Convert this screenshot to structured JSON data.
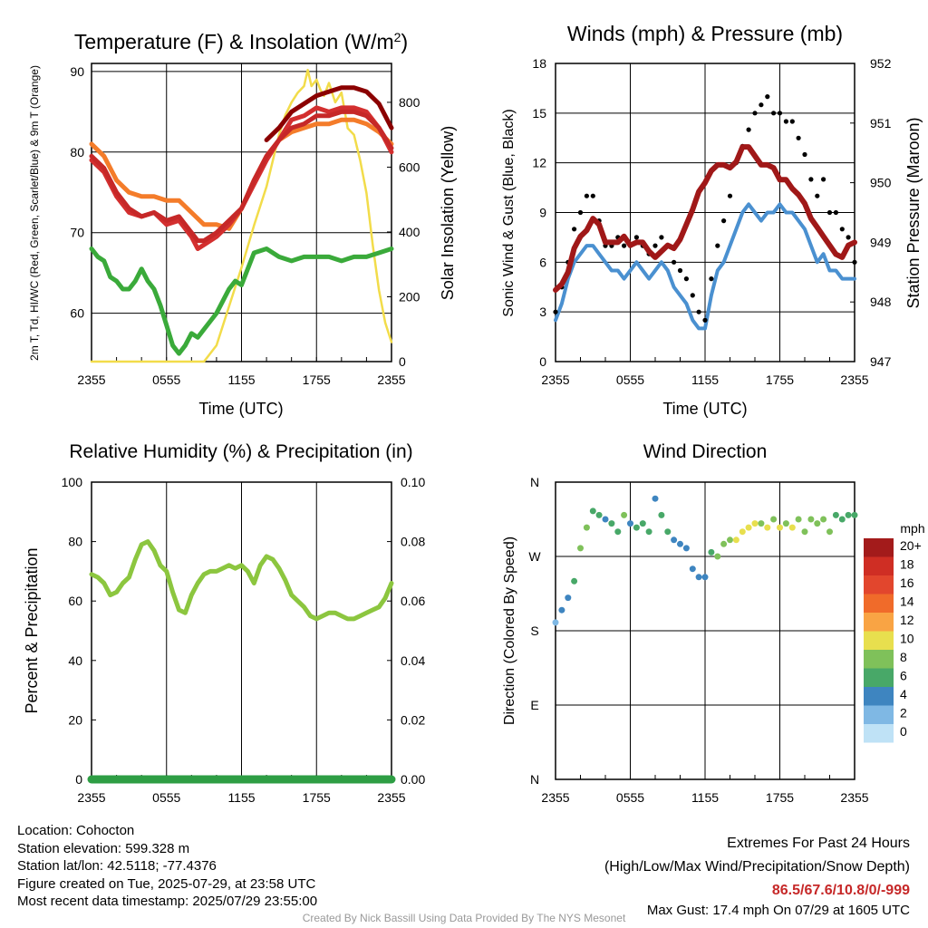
{
  "colors": {
    "temp": "#c62828",
    "dewpoint": "#8b0000",
    "heat_index": "#d32f2f",
    "temp9m": "#f47c2a",
    "dew_green": "#3aaa3a",
    "insolation": "#f2dc4a",
    "wind": "#4a90d0",
    "gust": "#000000",
    "pressure": "#a01818",
    "rh": "#8cc63f",
    "precip": "#2e9e44"
  },
  "speed_scale": {
    "label": "mph",
    "ticks": [
      "20+",
      "18",
      "16",
      "14",
      "12",
      "10",
      "8",
      "6",
      "4",
      "2",
      "0"
    ],
    "colors": [
      "#a31b1b",
      "#cf2e24",
      "#e2462d",
      "#f06b2a",
      "#f9a444",
      "#e8df4e",
      "#7fc15a",
      "#48a868",
      "#3e85c0",
      "#7fb8e4",
      "#bfe2f6"
    ]
  },
  "panels": {
    "temp": {
      "title": "Temperature (F) & Insolation (W/m",
      "title_sup": "2",
      "title_end": ")"
    },
    "wind": {
      "title": "Winds (mph) & Pressure (mb)"
    },
    "rh": {
      "title": "Relative Humidity (%) & Precipitation (in)"
    },
    "dir": {
      "title": "Wind Direction"
    }
  },
  "chart_data": [
    {
      "type": "line",
      "title": "Temperature (F) & Insolation (W/m2)",
      "xlabel": "Time (UTC)",
      "ylabel": "2m T, Td, HI/WC (Red, Green, Scarlet/Blue) & 9m T (Orange)",
      "y2label": "Solar Insolation (Yellow)",
      "x_ticks": [
        "2355",
        "0555",
        "1155",
        "1755",
        "2355"
      ],
      "x_hours": [
        0,
        6,
        12,
        18,
        24
      ],
      "ylim": [
        54,
        91
      ],
      "yticks": [
        60,
        70,
        80,
        90
      ],
      "y2lim": [
        0,
        920
      ],
      "y2ticks": [
        0,
        200,
        400,
        600,
        800
      ],
      "series": [
        {
          "name": "2m T",
          "hours": [
            0,
            1,
            2,
            3,
            4,
            5,
            6,
            7,
            8,
            8.5,
            9,
            10,
            11,
            12,
            13,
            14,
            15,
            16,
            17,
            18,
            19,
            20,
            21,
            22,
            23,
            24
          ],
          "values": [
            79.5,
            78,
            75,
            73,
            72,
            72.5,
            71.5,
            72,
            70,
            69,
            69,
            70,
            71.5,
            73,
            76.5,
            79.5,
            81.5,
            83,
            83.5,
            84.5,
            84.5,
            85,
            85,
            84.5,
            83,
            80.5
          ]
        },
        {
          "name": "Heat Index",
          "hours": [
            0,
            1,
            2,
            3,
            4,
            5,
            6,
            7,
            8,
            8.5,
            9,
            10,
            11,
            12,
            13,
            14,
            15,
            16,
            17,
            18,
            19,
            20,
            21,
            22,
            23,
            24
          ],
          "values": [
            79,
            77.5,
            74.5,
            72.5,
            72,
            72.5,
            71,
            71.5,
            69.5,
            68,
            68.5,
            69.5,
            71,
            73,
            76,
            79,
            81.5,
            84,
            84.5,
            85.5,
            85,
            85.5,
            85.5,
            85,
            83,
            80
          ]
        },
        {
          "name": "Dew Point (T maroon)",
          "hours": [
            14,
            15,
            16,
            17,
            18,
            19,
            20,
            21,
            22,
            23,
            24
          ],
          "values": [
            81.5,
            83,
            85,
            86,
            87,
            87.5,
            88,
            88,
            87.5,
            86,
            83
          ]
        },
        {
          "name": "9m T",
          "hours": [
            0,
            1,
            2,
            3,
            4,
            5,
            6,
            7,
            8,
            9,
            10,
            11,
            12,
            13,
            14,
            15,
            16,
            17,
            18,
            19,
            20,
            21,
            22,
            23,
            24
          ],
          "values": [
            81,
            79.5,
            76.5,
            75,
            74.5,
            74.5,
            74,
            74,
            72.5,
            71,
            71,
            70.5,
            73,
            76.5,
            79.5,
            81.5,
            82.5,
            83,
            83.5,
            83.5,
            84,
            84,
            83.5,
            82.5,
            81
          ]
        },
        {
          "name": "Td",
          "hours": [
            0,
            0.5,
            1,
            1.5,
            2,
            2.5,
            3,
            3.5,
            4,
            4.5,
            5,
            5.5,
            6,
            6.5,
            7,
            7.5,
            8,
            8.5,
            9,
            9.5,
            10,
            10.5,
            11,
            11.5,
            12,
            12.5,
            13,
            14,
            15,
            16,
            17,
            18,
            19,
            20,
            21,
            22,
            23,
            24
          ],
          "values": [
            68,
            67,
            66.5,
            64.5,
            64,
            63,
            63,
            64,
            65.5,
            64,
            63,
            61,
            58.5,
            56,
            55,
            56,
            57.5,
            57,
            58,
            59,
            60,
            61.5,
            63,
            64,
            63.5,
            65.5,
            67.5,
            68,
            67,
            66.5,
            67,
            67,
            67,
            66.5,
            67,
            67,
            67.5,
            68
          ]
        },
        {
          "name": "Solar Insolation",
          "axis": "right",
          "hours": [
            0,
            8,
            9,
            10,
            11,
            12,
            13,
            14,
            14.5,
            15,
            15.5,
            16,
            16.5,
            17,
            17.3,
            17.6,
            18,
            18.3,
            18.6,
            19,
            19.5,
            20,
            20.5,
            21,
            21.5,
            22,
            22.5,
            23,
            23.5,
            24
          ],
          "values": [
            0,
            0,
            0,
            50,
            170,
            290,
            420,
            540,
            620,
            700,
            760,
            800,
            830,
            850,
            900,
            850,
            870,
            840,
            820,
            860,
            800,
            830,
            720,
            700,
            620,
            520,
            360,
            220,
            120,
            60
          ]
        }
      ]
    },
    {
      "type": "line",
      "title": "Winds (mph) & Pressure (mb)",
      "xlabel": "Time (UTC)",
      "ylabel": "Sonic Wind & Gust (Blue, Black)",
      "y2label": "Station Pressure (Maroon)",
      "x_ticks": [
        "2355",
        "0555",
        "1155",
        "1755",
        "2355"
      ],
      "x_hours": [
        0,
        6,
        12,
        18,
        24
      ],
      "ylim": [
        0,
        18
      ],
      "yticks": [
        0,
        3,
        6,
        9,
        12,
        15,
        18
      ],
      "y2lim": [
        947,
        952
      ],
      "y2ticks": [
        947,
        948,
        949,
        950,
        951,
        952
      ],
      "series": [
        {
          "name": "Sonic Wind",
          "hours": [
            0,
            0.5,
            1,
            1.5,
            2,
            2.5,
            3,
            3.5,
            4,
            4.5,
            5,
            5.5,
            6,
            6.5,
            7,
            7.5,
            8,
            8.5,
            9,
            9.5,
            10,
            10.5,
            11,
            11.5,
            12,
            12.5,
            13,
            13.5,
            14,
            14.5,
            15,
            15.5,
            16,
            16.5,
            17,
            17.5,
            18,
            18.5,
            19,
            19.5,
            20,
            20.5,
            21,
            21.5,
            22,
            22.5,
            23,
            23.5,
            24
          ],
          "values": [
            2.5,
            3.5,
            5,
            6,
            6.5,
            7,
            7,
            6.5,
            6,
            5.5,
            5.5,
            5,
            5.5,
            6,
            5.5,
            5,
            5.5,
            6,
            5.5,
            4.5,
            4,
            3.5,
            2.5,
            2,
            2,
            4,
            5.5,
            6,
            7,
            8,
            9,
            9.5,
            9,
            8.5,
            9,
            9,
            9.5,
            9,
            9,
            8.5,
            8,
            7,
            6,
            6.5,
            5.5,
            5.5,
            5,
            5,
            5
          ]
        },
        {
          "name": "Gust",
          "hours": [
            0,
            0.5,
            1,
            1.5,
            2,
            2.5,
            3,
            3.5,
            4,
            4.5,
            5,
            5.5,
            6,
            6.5,
            7,
            7.5,
            8,
            8.5,
            9,
            9.5,
            10,
            10.5,
            11,
            11.5,
            12,
            12.5,
            13,
            13.5,
            14,
            14.5,
            15,
            15.5,
            16,
            16.5,
            17,
            17.5,
            18,
            18.5,
            19,
            19.5,
            20,
            20.5,
            21,
            21.5,
            22,
            22.5,
            23,
            23.5,
            24
          ],
          "values": [
            3,
            4.5,
            6,
            8,
            9,
            10,
            10,
            8.5,
            7,
            7,
            7.5,
            7,
            7,
            7.5,
            7,
            6.5,
            7,
            7.5,
            7,
            6,
            5.5,
            5,
            4,
            3,
            2.5,
            5,
            7,
            8.5,
            10,
            12,
            13,
            14,
            15,
            15.5,
            16,
            15,
            15,
            14.5,
            14.5,
            13.5,
            12.5,
            11,
            10,
            11,
            9,
            9,
            8,
            7.5,
            6
          ]
        },
        {
          "name": "Station Pressure",
          "axis": "right",
          "hours": [
            0,
            0.5,
            1,
            1.5,
            2,
            2.5,
            3,
            3.5,
            4,
            4.5,
            5,
            5.5,
            6,
            6.5,
            7,
            7.5,
            8,
            8.5,
            9,
            9.5,
            10,
            10.5,
            11,
            11.5,
            12,
            12.5,
            13,
            13.5,
            14,
            14.5,
            15,
            15.5,
            16,
            16.5,
            17,
            17.5,
            18,
            18.5,
            19,
            19.5,
            20,
            20.5,
            21,
            21.5,
            22,
            22.5,
            23,
            23.5,
            24
          ],
          "values": [
            948.2,
            948.3,
            948.5,
            948.9,
            949.1,
            949.2,
            949.4,
            949.3,
            949.0,
            949.0,
            949.0,
            949.1,
            948.95,
            949.0,
            949.0,
            948.85,
            948.75,
            948.85,
            948.95,
            948.9,
            949.05,
            949.3,
            949.55,
            949.85,
            950.0,
            950.2,
            950.3,
            950.3,
            950.25,
            950.35,
            950.6,
            950.6,
            950.45,
            950.3,
            950.3,
            950.25,
            950.05,
            950.05,
            949.9,
            949.8,
            949.65,
            949.4,
            949.25,
            949.1,
            948.95,
            948.8,
            948.75,
            948.95,
            949.0
          ]
        }
      ],
      "max_gust": 17.4
    },
    {
      "type": "line",
      "title": "Relative Humidity (%) & Precipitation (in)",
      "ylabel": "Percent & Precipitation",
      "x_ticks": [
        "2355",
        "0555",
        "1155",
        "1755",
        "2355"
      ],
      "x_hours": [
        0,
        6,
        12,
        18,
        24
      ],
      "ylim": [
        0,
        100
      ],
      "yticks": [
        0,
        20,
        40,
        60,
        80,
        100
      ],
      "y2lim": [
        0,
        0.1
      ],
      "y2ticks": [
        "0.00",
        "0.02",
        "0.04",
        "0.06",
        "0.08",
        "0.10"
      ],
      "series": [
        {
          "name": "Relative Humidity",
          "hours": [
            0,
            0.5,
            1,
            1.5,
            2,
            2.5,
            3,
            3.5,
            4,
            4.5,
            5,
            5.5,
            6,
            6.5,
            7,
            7.5,
            8,
            8.5,
            9,
            9.5,
            10,
            10.5,
            11,
            11.5,
            12,
            12.5,
            13,
            13.5,
            14,
            14.5,
            15,
            15.5,
            16,
            16.5,
            17,
            17.5,
            18,
            18.5,
            19,
            19.5,
            20,
            20.5,
            21,
            21.5,
            22,
            22.5,
            23,
            23.5,
            24
          ],
          "values": [
            69,
            68,
            66,
            62,
            63,
            66,
            68,
            74,
            79,
            80,
            77,
            72,
            70,
            63,
            57,
            56,
            62,
            66,
            69,
            70,
            70,
            71,
            72,
            71,
            72,
            70,
            66,
            72,
            75,
            74,
            71,
            67,
            62,
            60,
            58,
            55,
            54,
            55,
            56,
            56,
            55,
            54,
            54,
            55,
            56,
            57,
            58,
            61,
            66
          ]
        },
        {
          "name": "Precipitation",
          "axis": "right",
          "hours": [
            0,
            24
          ],
          "values": [
            0,
            0
          ]
        }
      ]
    },
    {
      "type": "scatter",
      "title": "Wind Direction",
      "ylabel": "Direction (Colored By Speed)",
      "x_ticks": [
        "2355",
        "0555",
        "1155",
        "1755",
        "2355"
      ],
      "x_hours": [
        0,
        6,
        12,
        18,
        24
      ],
      "y_ticks": [
        "N",
        "E",
        "S",
        "W",
        "N"
      ],
      "ylim": [
        0,
        360
      ],
      "series": [
        {
          "name": "Wind Direction",
          "hours": [
            0,
            0.5,
            1,
            1.5,
            2,
            2.5,
            3,
            3.5,
            4,
            4.5,
            5,
            5.5,
            6,
            6.5,
            7,
            7.5,
            8,
            8.5,
            9,
            9.5,
            10,
            10.5,
            11,
            11.5,
            12,
            12.5,
            13,
            13.5,
            14,
            14.5,
            15,
            15.5,
            16,
            16.5,
            17,
            17.5,
            18,
            18.5,
            19,
            19.5,
            20,
            20.5,
            21,
            21.5,
            22,
            22.5,
            23,
            23.5,
            24
          ],
          "values": [
            190,
            205,
            220,
            240,
            280,
            305,
            325,
            320,
            315,
            310,
            300,
            320,
            310,
            305,
            310,
            300,
            340,
            320,
            300,
            290,
            285,
            280,
            255,
            245,
            245,
            275,
            270,
            285,
            290,
            290,
            300,
            305,
            310,
            310,
            305,
            315,
            305,
            310,
            305,
            315,
            300,
            315,
            310,
            315,
            300,
            320,
            315,
            320,
            320
          ],
          "speeds": [
            2,
            3,
            4,
            6,
            7,
            7,
            6,
            5,
            4,
            5,
            6,
            7,
            4,
            5,
            6,
            6,
            4,
            5,
            5,
            4,
            4,
            3,
            3,
            4,
            3,
            6,
            7,
            8,
            8,
            9,
            10,
            10,
            9,
            8,
            9,
            8,
            9,
            8,
            9,
            8,
            7,
            8,
            7,
            8,
            7,
            6,
            6,
            6,
            6
          ]
        }
      ]
    }
  ],
  "footer": {
    "location": "Location: Cohocton",
    "elevation": "Station elevation: 599.328 m",
    "latlon": "Station lat/lon: 42.5118; -77.4376",
    "created": "Figure created on Tue, 2025-07-29, at 23:58 UTC",
    "recent": "Most recent data timestamp: 2025/07/29 23:55:00",
    "extremes_title": "Extremes For Past 24 Hours",
    "extremes_sub": "(High/Low/Max Wind/Precipitation/Snow Depth)",
    "extremes_values": "86.5/67.6/10.8/0/-999",
    "max_gust": "Max Gust: 17.4 mph On 07/29 at 1605 UTC",
    "credit": "Created By Nick Bassill Using Data Provided By The NYS Mesonet"
  }
}
